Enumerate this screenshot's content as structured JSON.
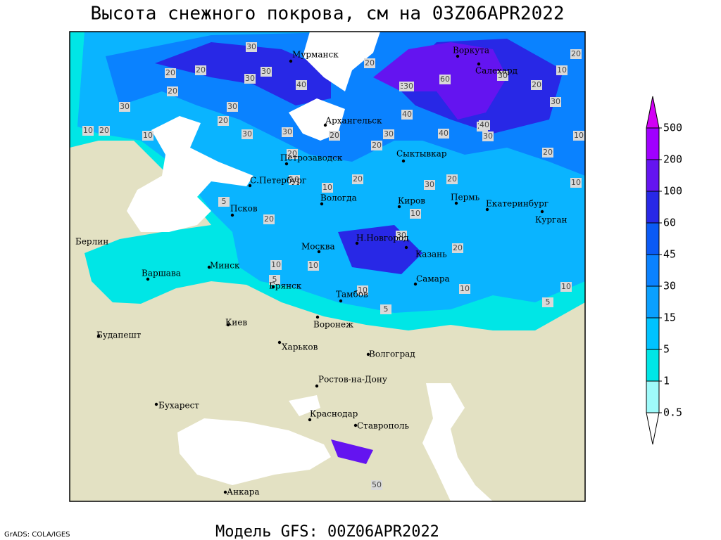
{
  "title": "Высота снежного покрова, см на 03Z06APR2022",
  "subtitle": "Модель GFS: 00Z06APR2022",
  "credit": "GrADS: COLA/IGES",
  "legend": {
    "levels": [
      0.5,
      1,
      5,
      15,
      30,
      45,
      60,
      100,
      200,
      500
    ],
    "colors": [
      "#ffffff",
      "#9ffafa",
      "#00e6e6",
      "#00c3ff",
      "#0aa0ff",
      "#0a82ff",
      "#0a5af5",
      "#2828e6",
      "#6414f0",
      "#a000ff",
      "#d200f5"
    ]
  },
  "cities": [
    "Мурманск",
    "Воркута",
    "Салехард",
    "Архангельск",
    "Петрозаводск",
    "Сыктывкар",
    "С.Петербург",
    "Вологда",
    "Киров",
    "Пермь",
    "Екатеринбург",
    "Курган",
    "Псков",
    "Н.Новгород",
    "Казань",
    "Москва",
    "Берлин",
    "Варшава",
    "Минск",
    "Брянск",
    "Тамбов",
    "Самара",
    "Киев",
    "Воронеж",
    "Будапешт",
    "Харьков",
    "Волгоград",
    "Ростов-на-Дону",
    "Бухарест",
    "Краснодар",
    "Ставрополь",
    "Анкара"
  ],
  "contour_labels": [
    30,
    30,
    20,
    30,
    30,
    20,
    30,
    30,
    40,
    20,
    20,
    10,
    10,
    20,
    30,
    30,
    20,
    20,
    20,
    60,
    30,
    40,
    30,
    40,
    20,
    30,
    40,
    10,
    20,
    30,
    20,
    10,
    20,
    10,
    30,
    30,
    20,
    20,
    10,
    10,
    20,
    20,
    10,
    10,
    10,
    10,
    5,
    5,
    5,
    10,
    5,
    20,
    30,
    50,
    10
  ]
}
